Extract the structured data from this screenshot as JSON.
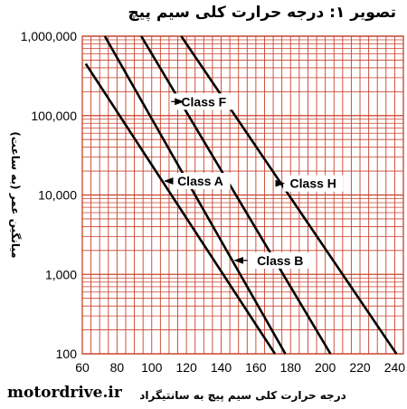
{
  "chart_data": {
    "type": "line",
    "title": "تصویر ۱: درجه حرارت کلی سیم پیچ",
    "xlabel": "درجه حرارت کلی سیم پیچ به سانتیگراد",
    "ylabel": "میانگین عمر (به ساعت)",
    "x_ticks": [
      "60",
      "80",
      "100",
      "120",
      "140",
      "160",
      "180",
      "200",
      "220",
      "240"
    ],
    "y_ticks": [
      "100",
      "1,000",
      "10,000",
      "100,000",
      "1,000,000"
    ],
    "xlim": [
      60,
      245
    ],
    "ylim": [
      100,
      1000000
    ],
    "y_scale": "log",
    "grid": true,
    "series": [
      {
        "name": "Class A",
        "x": [
          62,
          171
        ],
        "y": [
          450000,
          100
        ]
      },
      {
        "name": "Class B",
        "x": [
          73,
          177
        ],
        "y": [
          1000000,
          100
        ]
      },
      {
        "name": "Class F",
        "x": [
          94,
          203
        ],
        "y": [
          1000000,
          100
        ]
      },
      {
        "name": "Class H",
        "x": [
          117,
          241
        ],
        "y": [
          1000000,
          100
        ]
      }
    ],
    "annotations": [
      {
        "text": "Class A",
        "series": 0,
        "x": 128,
        "y": 15000
      },
      {
        "text": "Class B",
        "series": 1,
        "x": 174,
        "y": 1500
      },
      {
        "text": "Class F",
        "series": 2,
        "x": 130,
        "y": 150000
      },
      {
        "text": "Class H",
        "series": 3,
        "x": 193,
        "y": 14000
      }
    ]
  },
  "watermark": "motordrive.ir",
  "colors": {
    "grid": "#c8422d",
    "line": "#000000",
    "background": "#ffffff"
  }
}
